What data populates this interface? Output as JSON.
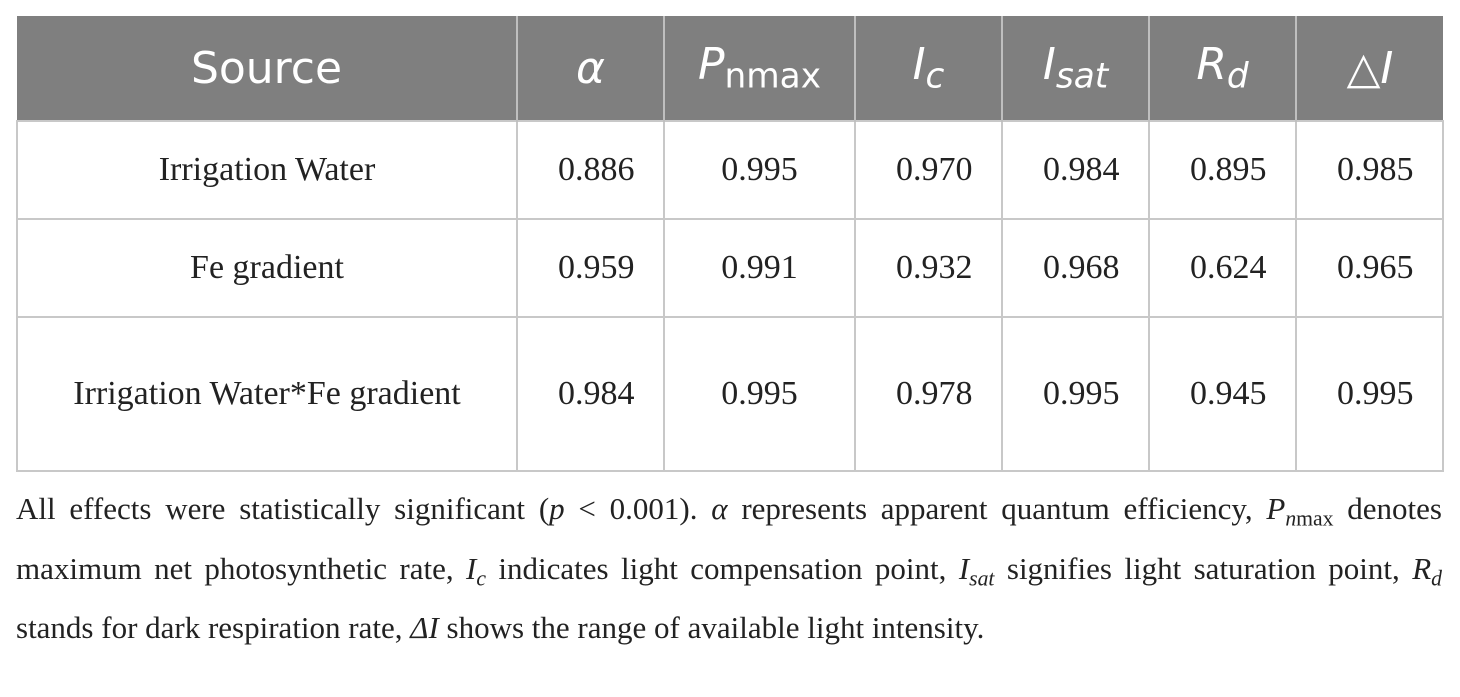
{
  "table": {
    "columns": [
      [
        {
          "text": "Source"
        }
      ],
      [
        {
          "italic": "α"
        }
      ],
      [
        {
          "italic": "P"
        },
        {
          "sub": "nmax"
        }
      ],
      [
        {
          "italic": "I"
        },
        {
          "italic_sub": "c"
        }
      ],
      [
        {
          "italic": "I"
        },
        {
          "italic_sub": "sat"
        }
      ],
      [
        {
          "italic": "R"
        },
        {
          "italic_sub": "d"
        }
      ],
      [
        {
          "text": "△"
        },
        {
          "italic": "I"
        }
      ]
    ],
    "rows": [
      [
        "Irrigation Water",
        "0.886",
        "0.995",
        "0.970",
        "0.984",
        "0.895",
        "0.985"
      ],
      [
        "Fe gradient",
        "0.959",
        "0.991",
        "0.932",
        "0.968",
        "0.624",
        "0.965"
      ],
      [
        "Irrigation Water*Fe gradient",
        "0.984",
        "0.995",
        "0.978",
        "0.995",
        "0.945",
        "0.995"
      ]
    ]
  },
  "footnote": [
    {
      "text": "All effects were statistically significant ("
    },
    {
      "italic": "p"
    },
    {
      "text": " < 0.001). "
    },
    {
      "italic": "α"
    },
    {
      "text": " represents apparent quantum efficiency, "
    },
    {
      "italic": "P"
    },
    {
      "italic_sub": "n"
    },
    {
      "sub": "max"
    },
    {
      "text": " denotes maximum net photosynthetic rate, "
    },
    {
      "italic": "I"
    },
    {
      "italic_sub": "c"
    },
    {
      "text": " indicates light compensation point, "
    },
    {
      "italic": "I"
    },
    {
      "italic_sub": "sat"
    },
    {
      "text": " signifies light saturation point, "
    },
    {
      "italic": "R"
    },
    {
      "italic_sub": "d"
    },
    {
      "text": " stands for dark respiration rate, "
    },
    {
      "italic": "ΔI"
    },
    {
      "text": " shows the range of available light intensity."
    }
  ]
}
